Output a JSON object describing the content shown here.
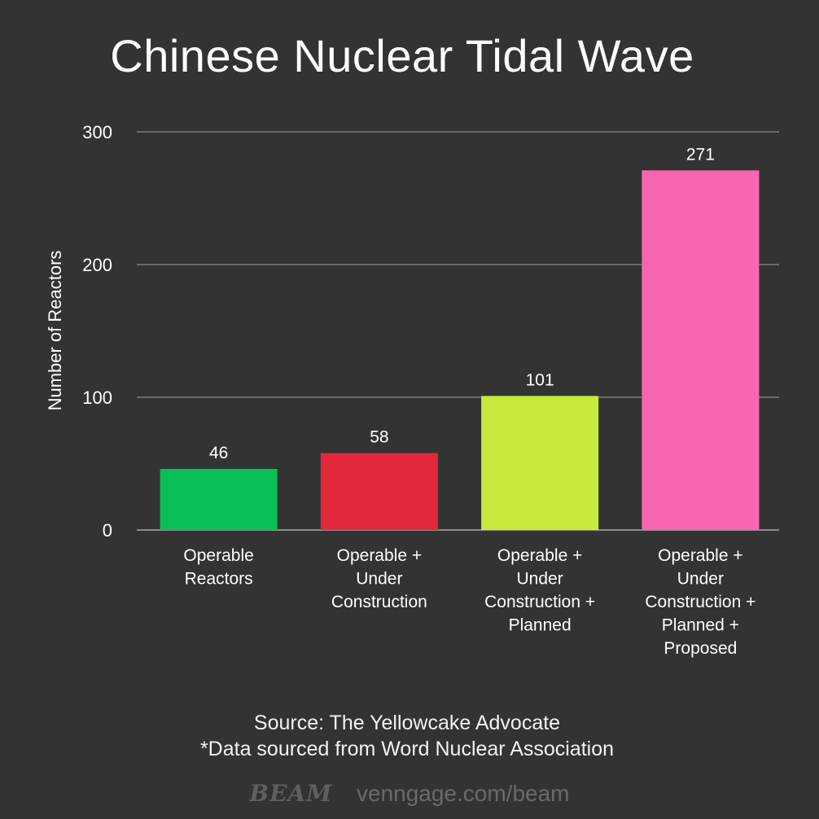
{
  "chart_data": {
    "type": "bar",
    "title": "Chinese Nuclear Tidal Wave",
    "ylabel": "Number of Reactors",
    "xlabel": "",
    "ylim": [
      0,
      300
    ],
    "yticks": [
      0,
      100,
      200,
      300
    ],
    "grid": true,
    "categories": [
      [
        "Operable",
        "Reactors"
      ],
      [
        "Operable +",
        "Under",
        "Construction"
      ],
      [
        "Operable +",
        "Under",
        "Construction +",
        "Planned"
      ],
      [
        "Operable +",
        "Under",
        "Construction +",
        "Planned +",
        "Proposed"
      ]
    ],
    "values": [
      46,
      58,
      101,
      271
    ],
    "colors": [
      "#0bbf58",
      "#e4283b",
      "#c8ea3c",
      "#f866b0"
    ]
  },
  "source": {
    "line1": "Source: The Yellowcake Advocate",
    "line2": "*Data sourced from Word Nuclear Association"
  },
  "footer": {
    "logo": "BEAM",
    "url": "venngage.com/beam"
  }
}
